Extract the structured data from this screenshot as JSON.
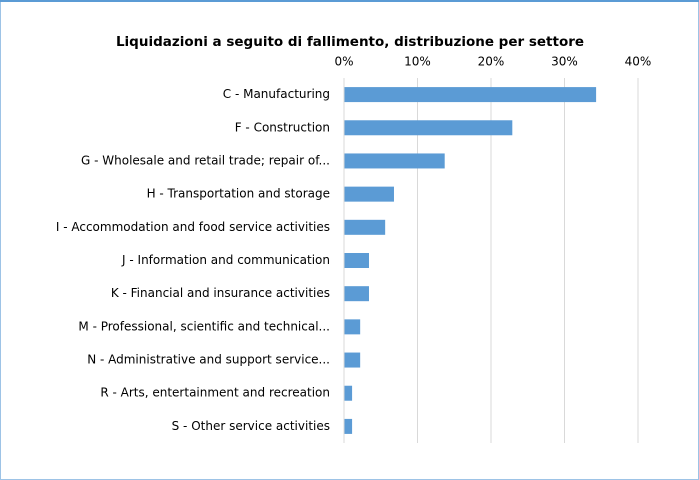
{
  "chart_data": {
    "type": "bar",
    "orientation": "horizontal",
    "title": "Liquidazioni a seguito di fallimento, distribuzione per settore",
    "categories": [
      "C - Manufacturing",
      "F - Construction",
      "G - Wholesale and retail trade; repair of...",
      "H - Transportation and storage",
      "I - Accommodation and food service activities",
      "J - Information and communication",
      "K - Financial and insurance activities",
      "M - Professional, scientific and technical...",
      "N - Administrative and support service...",
      "R - Arts, entertainment and recreation",
      "S - Other service activities"
    ],
    "values": [
      34.3,
      22.9,
      13.7,
      6.8,
      5.6,
      3.4,
      3.4,
      2.2,
      2.2,
      1.1,
      1.1
    ],
    "color": "#5b9bd5",
    "xlim": [
      0,
      40
    ],
    "xticks": [
      {
        "value": 0,
        "label": "0%"
      },
      {
        "value": 10,
        "label": "10%"
      },
      {
        "value": 20,
        "label": "20%"
      },
      {
        "value": 30,
        "label": "30%"
      },
      {
        "value": 40,
        "label": "40%"
      }
    ],
    "grid": true
  }
}
